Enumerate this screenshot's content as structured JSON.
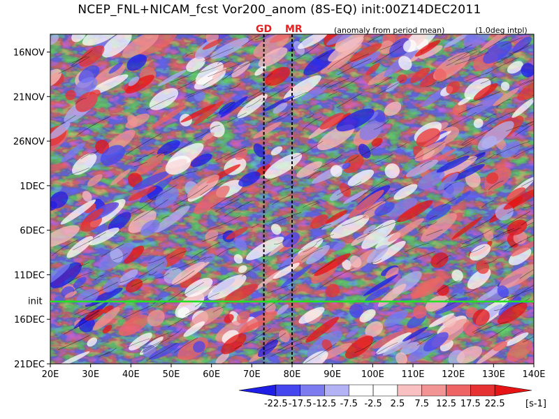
{
  "title": "NCEP_FNL+NICAM_fcst Vor200_anom (8S-EQ) init:00Z14DEC2011",
  "subtitle_anomaly": "(anomaly from period mean)",
  "subtitle_interp": "(1.0deg intpl)",
  "markers": [
    {
      "label": "GD",
      "lon": 73
    },
    {
      "label": "MR",
      "lon": 80
    }
  ],
  "init_label": "init",
  "colors": {
    "init_line": "#22e022",
    "marker_text": "#e62020",
    "levels": [
      "#1e1ee6",
      "#4646ee",
      "#7c7cf0",
      "#b2b2f4",
      "#ffffff",
      "#ffffff",
      "#f8c0c0",
      "#f29494",
      "#ee6464",
      "#e63232",
      "#e61414"
    ]
  },
  "chart_data": {
    "type": "heatmap",
    "x_axis": {
      "range": [
        20,
        140
      ],
      "ticks": [
        "20E",
        "30E",
        "40E",
        "50E",
        "60E",
        "70E",
        "80E",
        "90E",
        "100E",
        "110E",
        "120E",
        "130E",
        "140E"
      ]
    },
    "y_axis": {
      "range_days": [
        "14NOV2011",
        "21DEC2011"
      ],
      "ticks": [
        "16NOV",
        "21NOV",
        "26NOV",
        "1DEC",
        "6DEC",
        "11DEC",
        "16DEC",
        "21DEC"
      ]
    },
    "init_date": "14DEC2011",
    "colorbar": {
      "labels": [
        "-22.5",
        "-17.5",
        "-12.5",
        "-7.5",
        "-2.5",
        "2.5",
        "7.5",
        "12.5",
        "17.5",
        "22.5"
      ],
      "unit": "[s-1]"
    }
  }
}
